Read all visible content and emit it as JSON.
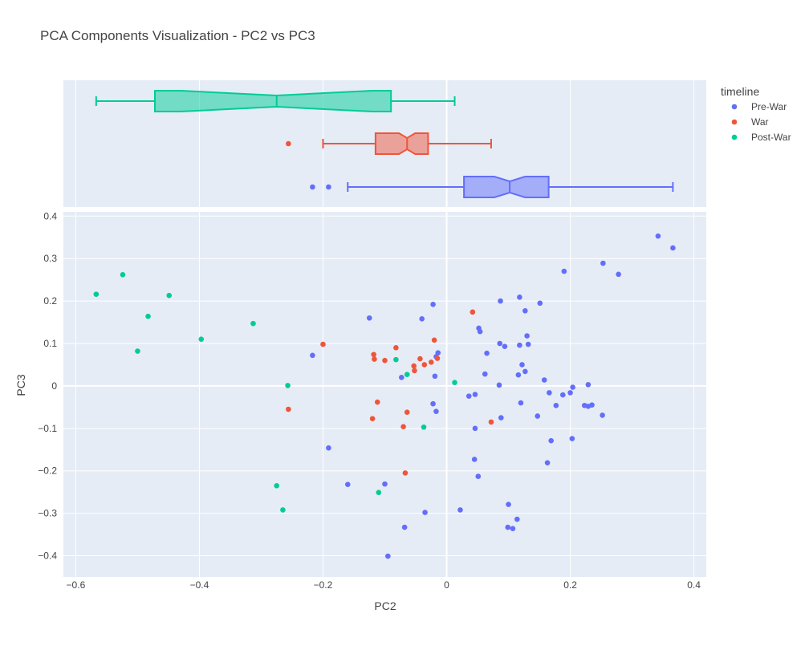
{
  "chart_data": {
    "type": "scatter",
    "title": "PCA Components Visualization - PC2 vs PC3",
    "xlabel": "PC2",
    "ylabel": "PC3",
    "xlim": [
      -0.62,
      0.42
    ],
    "ylim": [
      -0.45,
      0.41
    ],
    "x_ticks": [
      -0.6,
      -0.4,
      -0.2,
      0,
      0.2,
      0.4
    ],
    "x_tick_labels": [
      "−0.6",
      "−0.4",
      "−0.2",
      "0",
      "0.2",
      "0.4"
    ],
    "y_ticks": [
      -0.4,
      -0.3,
      -0.2,
      -0.1,
      0,
      0.1,
      0.2,
      0.3,
      0.4
    ],
    "y_tick_labels": [
      "−0.4",
      "−0.3",
      "−0.2",
      "−0.1",
      "0",
      "0.1",
      "0.2",
      "0.3",
      "0.4"
    ],
    "grid": true,
    "legend": {
      "title": "timeline",
      "placement": "top-right"
    },
    "series": [
      {
        "name": "Pre-War",
        "color": "#636efa",
        "points": [
          [
            0.342,
            0.353
          ],
          [
            0.366,
            0.325
          ],
          [
            0.253,
            0.289
          ],
          [
            0.278,
            0.263
          ],
          [
            0.19,
            0.27
          ],
          [
            0.087,
            0.2
          ],
          [
            0.118,
            0.209
          ],
          [
            0.151,
            0.195
          ],
          [
            0.127,
            0.177
          ],
          [
            -0.022,
            0.192
          ],
          [
            -0.04,
            0.158
          ],
          [
            -0.125,
            0.16
          ],
          [
            0.052,
            0.136
          ],
          [
            0.054,
            0.128
          ],
          [
            0.13,
            0.118
          ],
          [
            0.086,
            0.1
          ],
          [
            0.094,
            0.093
          ],
          [
            0.118,
            0.096
          ],
          [
            0.132,
            0.098
          ],
          [
            0.065,
            0.077
          ],
          [
            -0.014,
            0.078
          ],
          [
            -0.017,
            0.069
          ],
          [
            -0.217,
            0.072
          ],
          [
            0.122,
            0.05
          ],
          [
            0.127,
            0.034
          ],
          [
            0.116,
            0.026
          ],
          [
            0.062,
            0.028
          ],
          [
            -0.073,
            0.02
          ],
          [
            -0.019,
            0.023
          ],
          [
            0.158,
            0.014
          ],
          [
            0.085,
            0.002
          ],
          [
            0.204,
            -0.003
          ],
          [
            0.229,
            0.003
          ],
          [
            0.166,
            -0.016
          ],
          [
            0.2,
            -0.016
          ],
          [
            0.188,
            -0.021
          ],
          [
            0.036,
            -0.024
          ],
          [
            0.046,
            -0.02
          ],
          [
            -0.022,
            -0.042
          ],
          [
            0.12,
            -0.04
          ],
          [
            0.177,
            -0.046
          ],
          [
            0.223,
            -0.046
          ],
          [
            0.229,
            -0.048
          ],
          [
            0.235,
            -0.045
          ],
          [
            -0.017,
            -0.06
          ],
          [
            0.147,
            -0.071
          ],
          [
            0.252,
            -0.069
          ],
          [
            0.088,
            -0.075
          ],
          [
            0.046,
            -0.1
          ],
          [
            0.169,
            -0.129
          ],
          [
            0.203,
            -0.124
          ],
          [
            -0.191,
            -0.146
          ],
          [
            0.045,
            -0.173
          ],
          [
            0.163,
            -0.181
          ],
          [
            0.051,
            -0.213
          ],
          [
            -0.16,
            -0.232
          ],
          [
            -0.1,
            -0.231
          ],
          [
            0.022,
            -0.292
          ],
          [
            -0.035,
            -0.298
          ],
          [
            0.1,
            -0.279
          ],
          [
            0.114,
            -0.314
          ],
          [
            0.099,
            -0.333
          ],
          [
            0.107,
            -0.336
          ],
          [
            -0.068,
            -0.333
          ],
          [
            -0.095,
            -0.401
          ]
        ],
        "box": {
          "q1": 0.028,
          "median": 0.102,
          "q3": 0.165,
          "lowerfence": -0.16,
          "upperfence": 0.366,
          "notchspan": 0.025,
          "outliers": [
            -0.217,
            -0.191
          ]
        }
      },
      {
        "name": "War",
        "color": "#ef553b",
        "points": [
          [
            0.042,
            0.174
          ],
          [
            -0.02,
            0.108
          ],
          [
            -0.2,
            0.098
          ],
          [
            -0.118,
            0.074
          ],
          [
            -0.082,
            0.09
          ],
          [
            -0.117,
            0.063
          ],
          [
            -0.1,
            0.06
          ],
          [
            -0.043,
            0.064
          ],
          [
            -0.015,
            0.065
          ],
          [
            -0.025,
            0.056
          ],
          [
            -0.036,
            0.05
          ],
          [
            -0.053,
            0.047
          ],
          [
            -0.052,
            0.036
          ],
          [
            -0.112,
            -0.038
          ],
          [
            -0.064,
            -0.062
          ],
          [
            -0.256,
            -0.055
          ],
          [
            -0.12,
            -0.077
          ],
          [
            0.072,
            -0.085
          ],
          [
            -0.07,
            -0.096
          ],
          [
            -0.067,
            -0.205
          ]
        ],
        "box": {
          "q1": -0.115,
          "median": -0.064,
          "q3": -0.03,
          "lowerfence": -0.2,
          "upperfence": 0.072,
          "notchspan": 0.013,
          "outliers": [
            -0.256
          ]
        }
      },
      {
        "name": "Post-War",
        "color": "#00cc96",
        "points": [
          [
            -0.567,
            0.216
          ],
          [
            -0.524,
            0.262
          ],
          [
            -0.449,
            0.213
          ],
          [
            -0.483,
            0.164
          ],
          [
            -0.5,
            0.082
          ],
          [
            -0.397,
            0.11
          ],
          [
            -0.313,
            0.147
          ],
          [
            -0.257,
            0.001
          ],
          [
            -0.082,
            0.062
          ],
          [
            -0.064,
            0.027
          ],
          [
            0.013,
            0.008
          ],
          [
            -0.037,
            -0.097
          ],
          [
            -0.275,
            -0.235
          ],
          [
            -0.265,
            -0.292
          ],
          [
            -0.11,
            -0.251
          ]
        ],
        "box": {
          "q1": -0.472,
          "median": -0.275,
          "q3": -0.09,
          "lowerfence": -0.567,
          "upperfence": 0.013,
          "notchspan": 0.155,
          "outliers": []
        }
      }
    ]
  }
}
